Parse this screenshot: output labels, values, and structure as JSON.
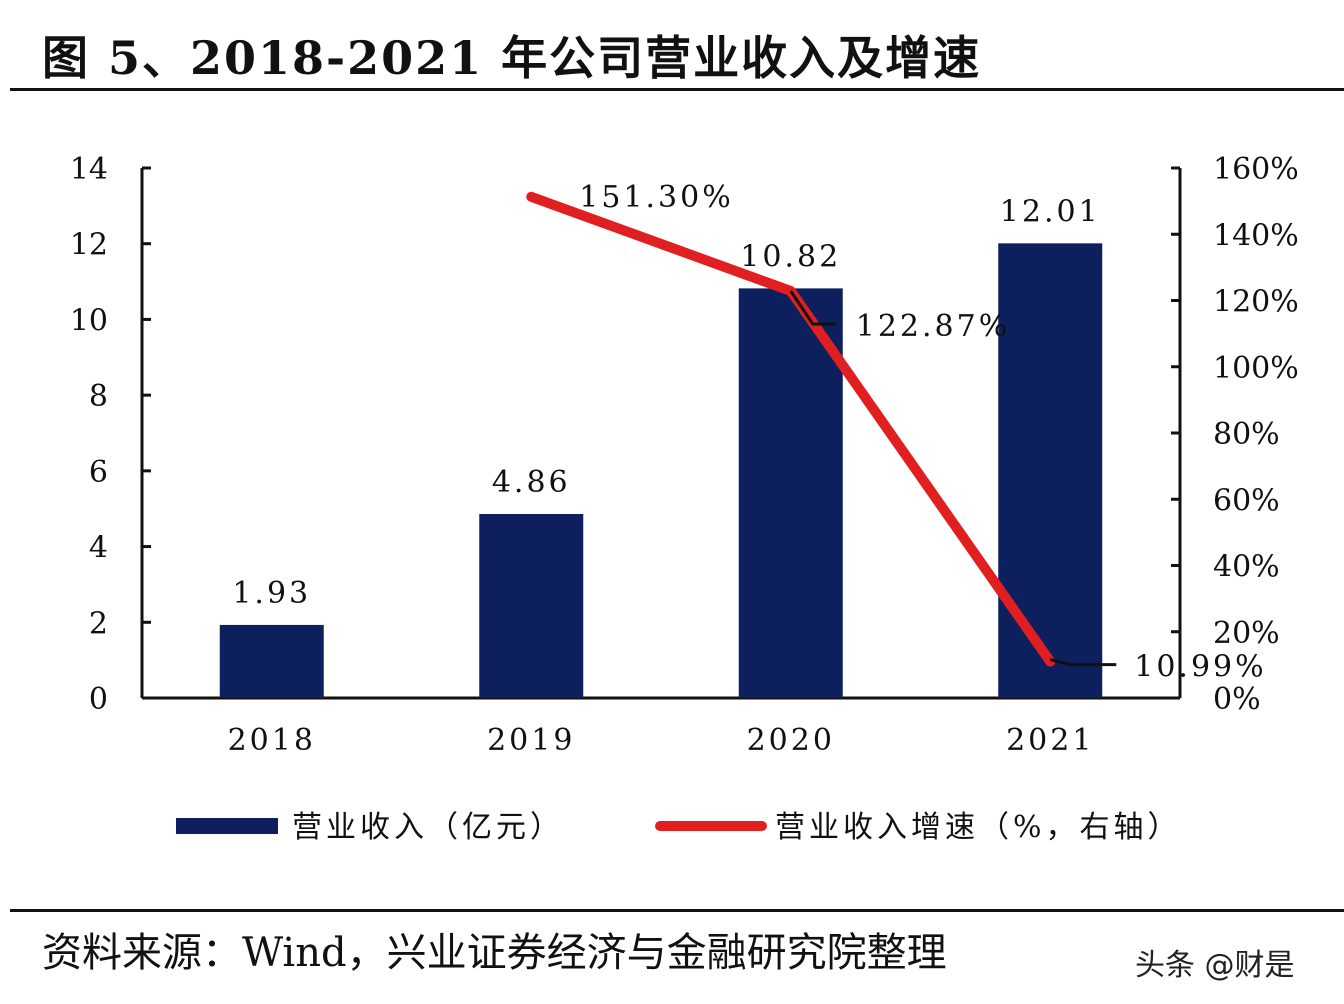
{
  "title": "图 5、2018-2021 年公司营业收入及增速",
  "source": "资料来源：Wind，兴业证券经济与金融研究院整理",
  "watermark": "头条 @财是",
  "chart_data": {
    "type": "bar+line",
    "categories": [
      "2018",
      "2019",
      "2020",
      "2021"
    ],
    "series": [
      {
        "name": "营业收入（亿元）",
        "type": "bar",
        "axis": "left",
        "color": "#0d1f5c",
        "values": [
          1.93,
          4.86,
          10.82,
          12.01
        ],
        "labels": [
          "1.93",
          "4.86",
          "10.82",
          "12.01"
        ]
      },
      {
        "name": "营业收入增速（%，右轴）",
        "type": "line",
        "axis": "right",
        "color": "#e02020",
        "values": [
          null,
          151.3,
          122.87,
          10.99
        ],
        "labels": [
          "",
          "151.30%",
          "122.87%",
          "10.99%"
        ]
      }
    ],
    "left_axis": {
      "ylim": [
        0,
        14
      ],
      "ticks": [
        "0",
        "2",
        "4",
        "6",
        "8",
        "10",
        "12",
        "14"
      ]
    },
    "right_axis": {
      "ylim": [
        0,
        160
      ],
      "ticks": [
        "0%",
        "20%",
        "40%",
        "60%",
        "80%",
        "100%",
        "120%",
        "140%",
        "160%"
      ]
    },
    "legend": "bottom",
    "grid": false
  }
}
